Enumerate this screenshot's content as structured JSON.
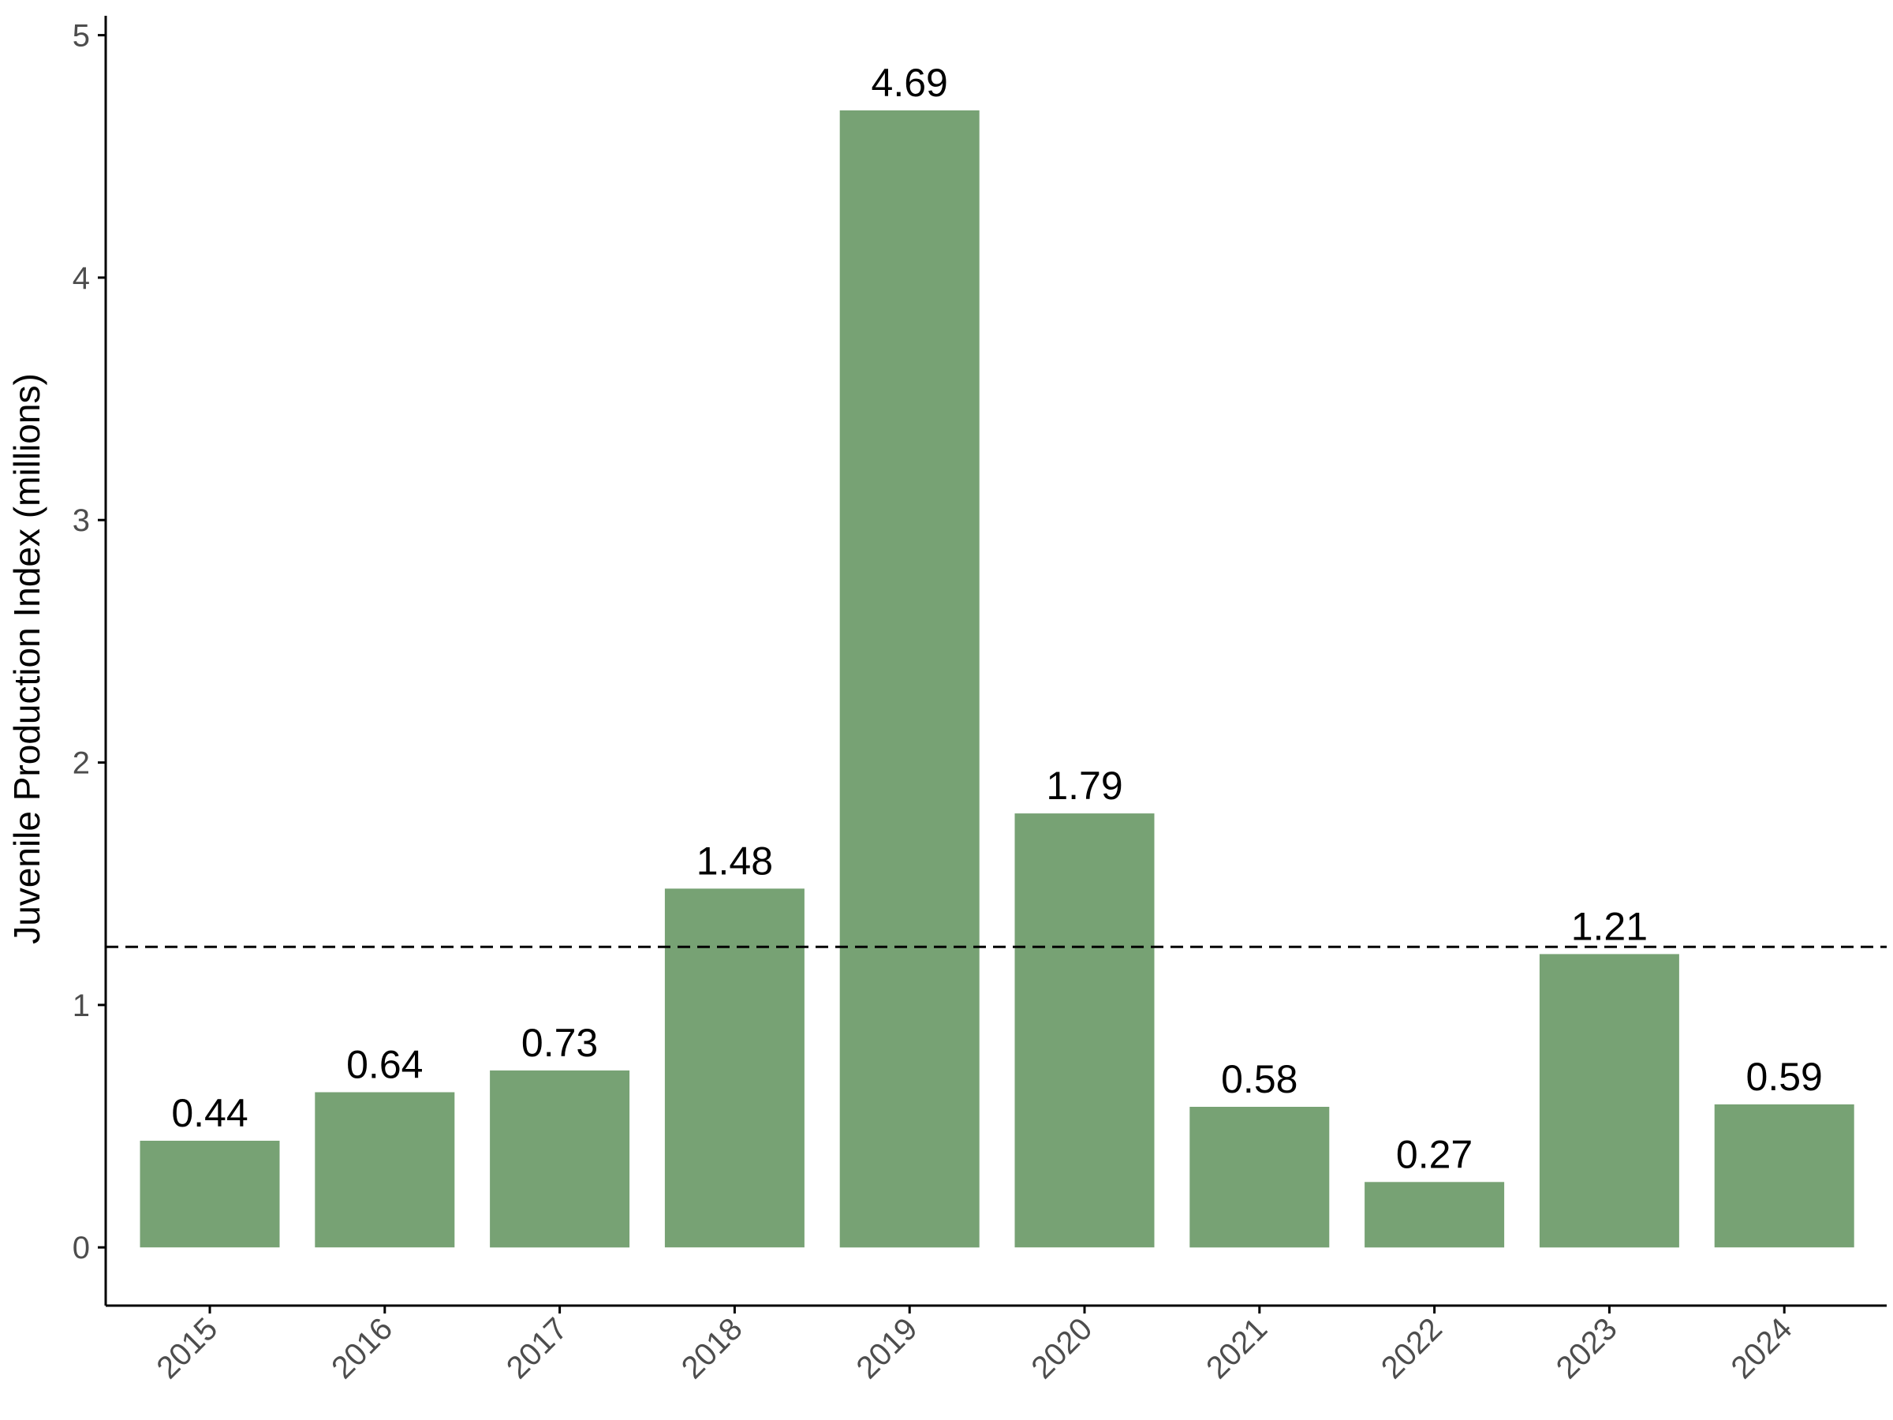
{
  "chart_data": {
    "type": "bar",
    "title": "",
    "xlabel": "",
    "ylabel": "Juvenile Production Index (millions)",
    "categories": [
      "2015",
      "2016",
      "2017",
      "2018",
      "2019",
      "2020",
      "2021",
      "2022",
      "2023",
      "2024"
    ],
    "values": [
      0.44,
      0.64,
      0.73,
      1.48,
      4.69,
      1.79,
      0.58,
      0.27,
      1.21,
      0.59
    ],
    "value_labels": [
      "0.44",
      "0.64",
      "0.73",
      "1.48",
      "4.69",
      "1.79",
      "0.58",
      "0.27",
      "1.21",
      "0.59"
    ],
    "ylim": [
      -0.24,
      5.08
    ],
    "yticks": [
      0,
      1,
      2,
      3,
      4,
      5
    ],
    "ytick_labels": [
      "0",
      "1",
      "2",
      "3",
      "4",
      "5"
    ],
    "reference_line": {
      "value": 1.24,
      "style": "dashed"
    },
    "grid": false,
    "colors": {
      "bar": "#77a274",
      "axis": "#000000",
      "tick_text": "#4d4d4d",
      "label_text": "#000000",
      "reference_line": "#000000"
    }
  }
}
